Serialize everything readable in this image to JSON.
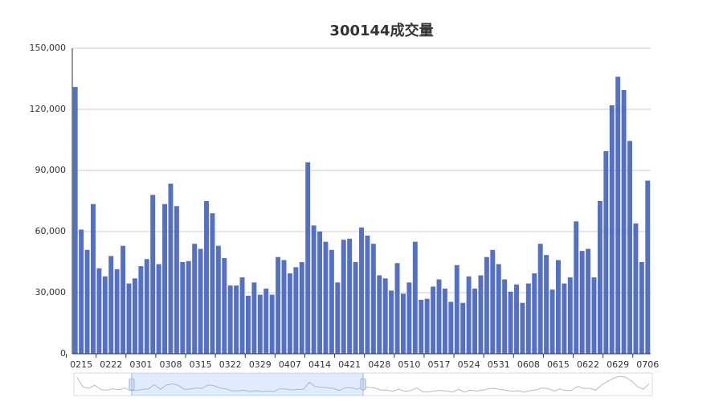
{
  "chart_data": {
    "type": "bar",
    "title": "300144成交量",
    "categories": [
      null,
      "0215",
      null,
      null,
      null,
      null,
      "0222",
      null,
      null,
      null,
      null,
      "0301",
      null,
      null,
      null,
      null,
      "0308",
      null,
      null,
      null,
      null,
      "0315",
      null,
      null,
      null,
      null,
      "0322",
      null,
      null,
      null,
      null,
      "0329",
      null,
      null,
      null,
      null,
      "0407",
      null,
      null,
      null,
      null,
      "0414",
      null,
      null,
      null,
      null,
      "0421",
      null,
      null,
      null,
      null,
      "0428",
      null,
      null,
      null,
      null,
      "0510",
      null,
      null,
      null,
      null,
      "0517",
      null,
      null,
      null,
      null,
      "0524",
      null,
      null,
      null,
      null,
      "0531",
      null,
      null,
      null,
      null,
      "0608",
      null,
      null,
      null,
      null,
      "0615",
      null,
      null,
      null,
      null,
      "0622",
      null,
      null,
      null,
      null,
      "0629",
      null,
      null,
      null,
      null,
      "0706"
    ],
    "values": [
      131000,
      61000,
      51000,
      73500,
      42000,
      38000,
      48000,
      41500,
      53000,
      34500,
      37000,
      43000,
      46500,
      78000,
      44000,
      73500,
      83500,
      72500,
      45000,
      45500,
      54000,
      51500,
      75000,
      69000,
      53000,
      47000,
      33500,
      33500,
      37500,
      28500,
      35000,
      29000,
      32000,
      29000,
      47500,
      46000,
      39500,
      42500,
      45000,
      94000,
      63000,
      60000,
      55000,
      51000,
      35000,
      56000,
      56500,
      45000,
      62000,
      58000,
      54000,
      38500,
      37000,
      31000,
      44500,
      29500,
      35000,
      55000,
      26500,
      27000,
      33000,
      36500,
      32000,
      25500,
      43500,
      25000,
      38000,
      32000,
      38500,
      47500,
      51000,
      44000,
      36500,
      30500,
      34000,
      25000,
      34500,
      39500,
      54000,
      48500,
      31500,
      46000,
      34500,
      37500,
      65000,
      50500,
      51500,
      37500,
      75000,
      99500,
      122000,
      136000,
      129500,
      104500,
      64000,
      45000,
      85000
    ],
    "color": "#5470c6",
    "ylim": [
      0,
      150000
    ],
    "yticks": [
      0,
      {
        "value": 30000,
        "label": "30,000"
      },
      {
        "value": 60000,
        "label": "60,000"
      },
      {
        "value": 90000,
        "label": "90,000"
      },
      {
        "value": 120000,
        "label": "120,000"
      },
      {
        "value": 150000,
        "label": "150,000"
      }
    ],
    "grid": true
  }
}
